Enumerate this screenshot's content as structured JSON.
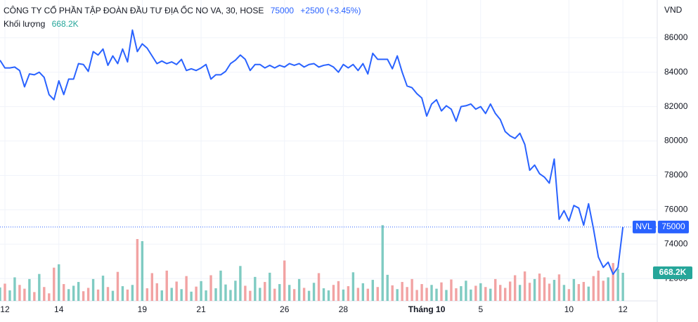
{
  "chart_data": {
    "type": "line",
    "title": "CÔNG TY CỔ PHẦN TẬP ĐOÀN ĐẦU TƯ ĐỊA ỐC NO VA, 30, HOSE",
    "change": "+2500 (+3.45%)",
    "currency": "VND",
    "volume_title": "Khối lượng",
    "grid": true,
    "up_color": "#7fcbc2",
    "down_color": "#f2a3a3",
    "xlim": [
      0,
      134
    ],
    "xticks": [
      {
        "value": 1,
        "label": "12"
      },
      {
        "value": 12,
        "label": "14"
      },
      {
        "value": 29,
        "label": "19"
      },
      {
        "value": 41,
        "label": "21"
      },
      {
        "value": 58,
        "label": "26"
      },
      {
        "value": 70,
        "label": "28"
      },
      {
        "value": 87,
        "label": "Tháng 10"
      },
      {
        "value": 98,
        "label": "5"
      },
      {
        "value": 116,
        "label": "10"
      },
      {
        "value": 127,
        "label": "12"
      }
    ],
    "ylim": [
      70700,
      88200
    ],
    "yticks": [
      72000,
      74000,
      76000,
      78000,
      80000,
      82000,
      84000,
      86000
    ],
    "y2lim": [
      0,
      7150000
    ],
    "series": [
      {
        "name": "NVL",
        "color": "#2962ff",
        "values": [
          84700,
          84250,
          84250,
          84300,
          84100,
          83150,
          83900,
          83850,
          84000,
          83700,
          82700,
          82400,
          83500,
          82700,
          83600,
          83600,
          84500,
          84450,
          84050,
          85200,
          85000,
          85350,
          84400,
          84950,
          84500,
          85350,
          84600,
          86450,
          85200,
          85650,
          85400,
          84950,
          84500,
          84650,
          84500,
          84600,
          84450,
          84750,
          84100,
          84200,
          84100,
          84250,
          84450,
          83600,
          83850,
          83850,
          84050,
          84500,
          84700,
          85000,
          84750,
          84100,
          84450,
          84450,
          84250,
          84400,
          84250,
          84400,
          84300,
          84500,
          84400,
          84500,
          84300,
          84450,
          84500,
          84300,
          84400,
          84450,
          84300,
          84000,
          84450,
          84250,
          84450,
          84100,
          84500,
          83900,
          85100,
          84750,
          84750,
          84750,
          84200,
          84950,
          84000,
          83200,
          83100,
          82750,
          82500,
          81450,
          82150,
          82400,
          81750,
          82050,
          81850,
          81150,
          82000,
          82050,
          82150,
          81850,
          82000,
          81600,
          82150,
          81600,
          81250,
          80550,
          80300,
          80150,
          80450,
          79800,
          78300,
          78600,
          78100,
          77900,
          77550,
          78950,
          75450,
          75950,
          75350,
          76250,
          76100,
          75100,
          76350,
          74900,
          73250,
          72650,
          72950,
          72250,
          72650,
          75000
        ]
      },
      {
        "name": "Khối lượng",
        "type": "bar",
        "axis": "y2",
        "last_label": "668.2K",
        "color": "#26a69a",
        "values": [
          320000,
          410000,
          250000,
          560000,
          380000,
          290000,
          520000,
          210000,
          640000,
          330000,
          180000,
          790000,
          870000,
          400000,
          280000,
          360000,
          450000,
          230000,
          310000,
          520000,
          270000,
          600000,
          330000,
          240000,
          690000,
          350000,
          270000,
          380000,
          1470000,
          1420000,
          300000,
          660000,
          420000,
          250000,
          720000,
          310000,
          460000,
          280000,
          590000,
          220000,
          340000,
          470000,
          250000,
          610000,
          300000,
          720000,
          390000,
          260000,
          480000,
          830000,
          360000,
          240000,
          570000,
          310000,
          450000,
          670000,
          290000,
          400000,
          960000,
          380000,
          280000,
          520000,
          310000,
          240000,
          430000,
          660000,
          300000,
          250000,
          380000,
          470000,
          270000,
          350000,
          680000,
          310000,
          420000,
          290000,
          500000,
          330000,
          1800000,
          620000,
          370000,
          280000,
          450000,
          330000,
          520000,
          260000,
          400000,
          310000,
          380000,
          290000,
          440000,
          260000,
          510000,
          300000,
          350000,
          480000,
          270000,
          360000,
          420000,
          330000,
          290000,
          520000,
          380000,
          310000,
          460000,
          610000,
          380000,
          700000,
          430000,
          520000,
          650000,
          560000,
          410000,
          500000,
          630000,
          380000,
          280000,
          520000,
          400000,
          450000,
          340000,
          590000,
          720000,
          480000,
          560000,
          900000,
          760000,
          668200
        ]
      }
    ]
  }
}
